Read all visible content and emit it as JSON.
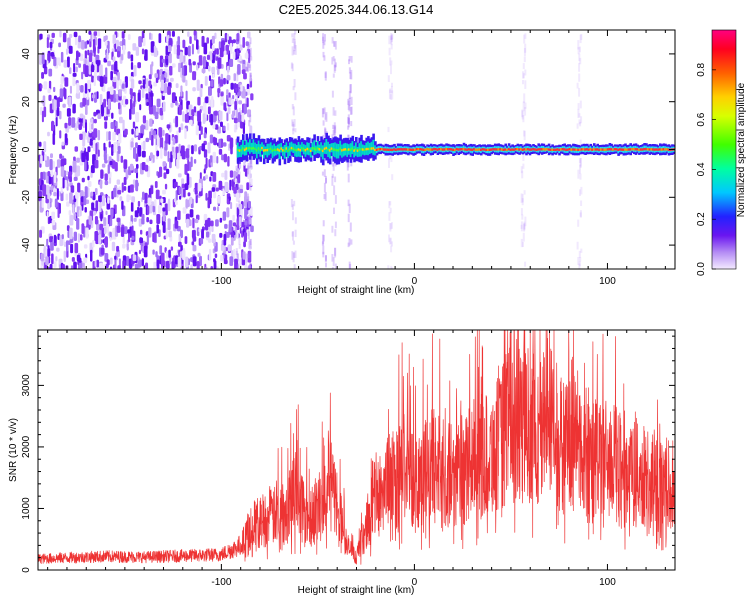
{
  "title": "C2E5.2025.344.06.13.G14",
  "colors": {
    "snr_line": "#ee3333",
    "axis": "#000000",
    "spectral_low": "#7b2cf0"
  },
  "chart_data": [
    {
      "type": "heatmap",
      "name": "spectrogram",
      "title": "C2E5.2025.344.06.13.G14",
      "xlabel": "Height of straight line (km)",
      "ylabel": "Frequency (Hz)",
      "xlim": [
        -195,
        135
      ],
      "ylim": [
        -50,
        50
      ],
      "xticks": [
        -100,
        0,
        100
      ],
      "yticks": [
        -40,
        -20,
        0,
        20,
        40
      ],
      "colorbar": {
        "label": "Normalized spectral amplitude",
        "range": [
          0,
          0.96
        ],
        "ticks": [
          0,
          0.2,
          0.4,
          0.6,
          0.8
        ],
        "colormap": "rainbow"
      },
      "features": [
        {
          "description": "broadband noise",
          "x_range": [
            -195,
            -85
          ],
          "freq_range": [
            -50,
            50
          ]
        },
        {
          "description": "dominant signal near 0 Hz",
          "x_range": [
            -92,
            135
          ],
          "freq": 0
        }
      ]
    },
    {
      "type": "line",
      "name": "snr",
      "xlabel": "Height of straight line (km)",
      "ylabel": "SNR (10 * v/v)",
      "xlim": [
        -195,
        135
      ],
      "ylim": [
        0,
        3900
      ],
      "xticks": [
        -100,
        0,
        100
      ],
      "yticks": [
        0,
        1000,
        2000,
        3000
      ],
      "series": [
        {
          "x": [
            -195,
            -180,
            -160,
            -140,
            -120,
            -100,
            -90,
            -85,
            -80,
            -70,
            -62,
            -55,
            -50,
            -45,
            -40,
            -35,
            -30,
            -25,
            -20,
            -15,
            -10,
            -5,
            0,
            10,
            20,
            30,
            40,
            45,
            50,
            55,
            60,
            65,
            70,
            75,
            80,
            90,
            100,
            110,
            120,
            130,
            135
          ],
          "y": [
            180,
            200,
            220,
            210,
            230,
            250,
            400,
            700,
            800,
            900,
            1300,
            900,
            1000,
            1500,
            1100,
            400,
            200,
            700,
            1200,
            1400,
            1500,
            1700,
            1500,
            1700,
            1500,
            1800,
            1900,
            2100,
            2600,
            2300,
            2400,
            2200,
            2700,
            2000,
            2100,
            1900,
            1800,
            1600,
            1500,
            1300,
            1200
          ]
        }
      ]
    }
  ]
}
